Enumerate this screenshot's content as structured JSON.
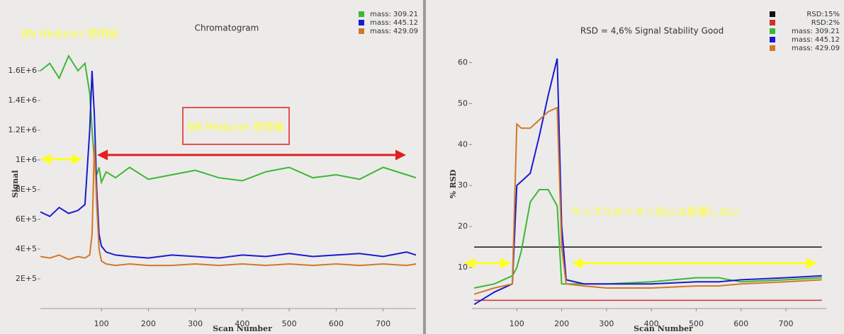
{
  "chart_data": [
    {
      "type": "line",
      "title": "Chromatogram",
      "annotations": [
        "BN Reducer 使用前",
        "BN Reducer 使用後"
      ],
      "x_label": "Scan Number",
      "y_label": "Signal",
      "x": [
        -30,
        -10,
        10,
        30,
        50,
        65,
        75,
        80,
        85,
        90,
        95,
        100,
        110,
        130,
        160,
        200,
        250,
        300,
        350,
        400,
        450,
        500,
        550,
        600,
        650,
        700,
        750,
        770
      ],
      "series": [
        {
          "name": "mass: 309.21",
          "color": "#3cb832",
          "values": [
            1600000,
            1650000,
            1550000,
            1700000,
            1600000,
            1650000,
            1450000,
            1200000,
            1000000,
            900000,
            950000,
            850000,
            920000,
            880000,
            950000,
            870000,
            900000,
            930000,
            880000,
            860000,
            920000,
            950000,
            880000,
            900000,
            870000,
            950000,
            900000,
            880000
          ]
        },
        {
          "name": "mass: 445.12",
          "color": "#1a1ad0",
          "values": [
            650000,
            620000,
            680000,
            640000,
            660000,
            700000,
            1200000,
            1600000,
            1300000,
            800000,
            500000,
            420000,
            380000,
            360000,
            350000,
            340000,
            360000,
            350000,
            340000,
            360000,
            350000,
            370000,
            350000,
            360000,
            370000,
            350000,
            380000,
            360000
          ]
        },
        {
          "name": "mass: 429.09",
          "color": "#d2782a",
          "values": [
            350000,
            340000,
            360000,
            330000,
            350000,
            340000,
            360000,
            500000,
            1100000,
            700000,
            400000,
            320000,
            300000,
            290000,
            300000,
            290000,
            290000,
            300000,
            290000,
            300000,
            290000,
            300000,
            290000,
            300000,
            290000,
            300000,
            290000,
            300000
          ]
        }
      ],
      "xlim": [
        -30,
        770
      ],
      "xticks": [
        100,
        200,
        300,
        400,
        500,
        600,
        700
      ],
      "ylim": [
        0,
        1800000
      ],
      "yticks": [
        {
          "value": 200000,
          "label": "2E+5"
        },
        {
          "value": 400000,
          "label": "4E+5"
        },
        {
          "value": 600000,
          "label": "6E+5"
        },
        {
          "value": 800000,
          "label": "8E+5"
        },
        {
          "value": 1000000,
          "label": "1E+6"
        },
        {
          "value": 1200000,
          "label": "1.2E+6"
        },
        {
          "value": 1400000,
          "label": "1.4E+6"
        },
        {
          "value": 1600000,
          "label": "1.6E+6"
        }
      ]
    },
    {
      "type": "line",
      "title": "RSD = 4,6% Signal Stability Good",
      "annotations": [
        "サンプルのイオン化には影響しない"
      ],
      "x_label": "Scan Number",
      "y_label": "% RSD",
      "thresholds": [
        {
          "name": "RSD:15%",
          "color": "#111111",
          "value": 15
        },
        {
          "name": "RSD:2%",
          "color": "#d03030",
          "value": 2
        }
      ],
      "x": [
        5,
        50,
        90,
        100,
        110,
        130,
        150,
        170,
        190,
        200,
        210,
        250,
        300,
        400,
        500,
        550,
        600,
        700,
        780
      ],
      "series": [
        {
          "name": "mass: 309.21",
          "color": "#3cb832",
          "values": [
            5,
            6,
            8,
            10,
            14,
            26,
            29,
            29,
            25,
            6,
            6,
            6,
            6,
            6.5,
            7.5,
            7.5,
            6.5,
            7,
            7.5
          ]
        },
        {
          "name": "mass: 445.12",
          "color": "#1a1ad0",
          "values": [
            1,
            4,
            6,
            30,
            31,
            33,
            42,
            52,
            61,
            20,
            7,
            6,
            6,
            6,
            6.5,
            6.5,
            7,
            7.5,
            8
          ]
        },
        {
          "name": "mass: 429.09",
          "color": "#d2782a",
          "values": [
            3.5,
            5,
            6,
            45,
            44,
            44,
            46,
            48,
            49,
            15,
            6,
            5.5,
            5,
            5,
            5.5,
            5.5,
            6,
            6.5,
            7
          ]
        }
      ],
      "xlim": [
        0,
        790
      ],
      "xticks": [
        100,
        200,
        300,
        400,
        500,
        600,
        700
      ],
      "ylim": [
        0,
        63
      ],
      "yticks": [
        10,
        20,
        30,
        40,
        50,
        60
      ]
    }
  ]
}
